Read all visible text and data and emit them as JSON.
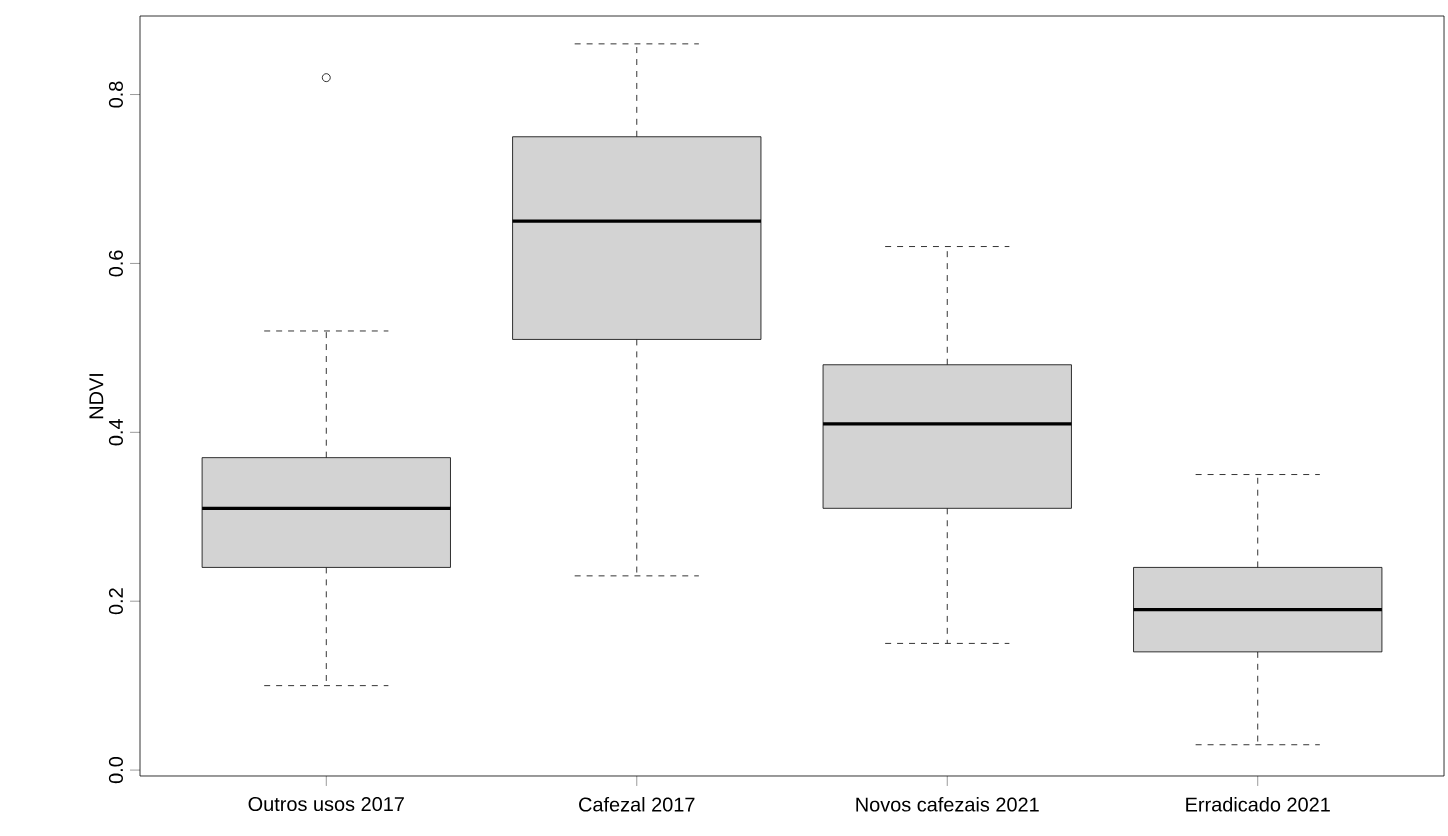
{
  "chart_data": {
    "type": "box",
    "ylabel": "NDVI",
    "categories": [
      "Outros usos 2017",
      "Cafezal 2017",
      "Novos cafezais 2021",
      "Erradicado 2021"
    ],
    "color": "#d3d3d3",
    "boxes": [
      {
        "low": 0.1,
        "q1": 0.24,
        "median": 0.31,
        "q3": 0.37,
        "high": 0.52,
        "outliers": [
          0.82
        ]
      },
      {
        "low": 0.23,
        "q1": 0.51,
        "median": 0.65,
        "q3": 0.75,
        "high": 0.86
      },
      {
        "low": 0.15,
        "q1": 0.31,
        "median": 0.41,
        "q3": 0.48,
        "high": 0.62
      },
      {
        "low": 0.03,
        "q1": 0.14,
        "median": 0.19,
        "q3": 0.24,
        "high": 0.35
      }
    ],
    "ylim": [
      -0.007,
      0.893
    ],
    "yticks": [
      {
        "value": 0,
        "label": "0.0"
      },
      0.2,
      0.4,
      0.6,
      0.8
    ]
  }
}
